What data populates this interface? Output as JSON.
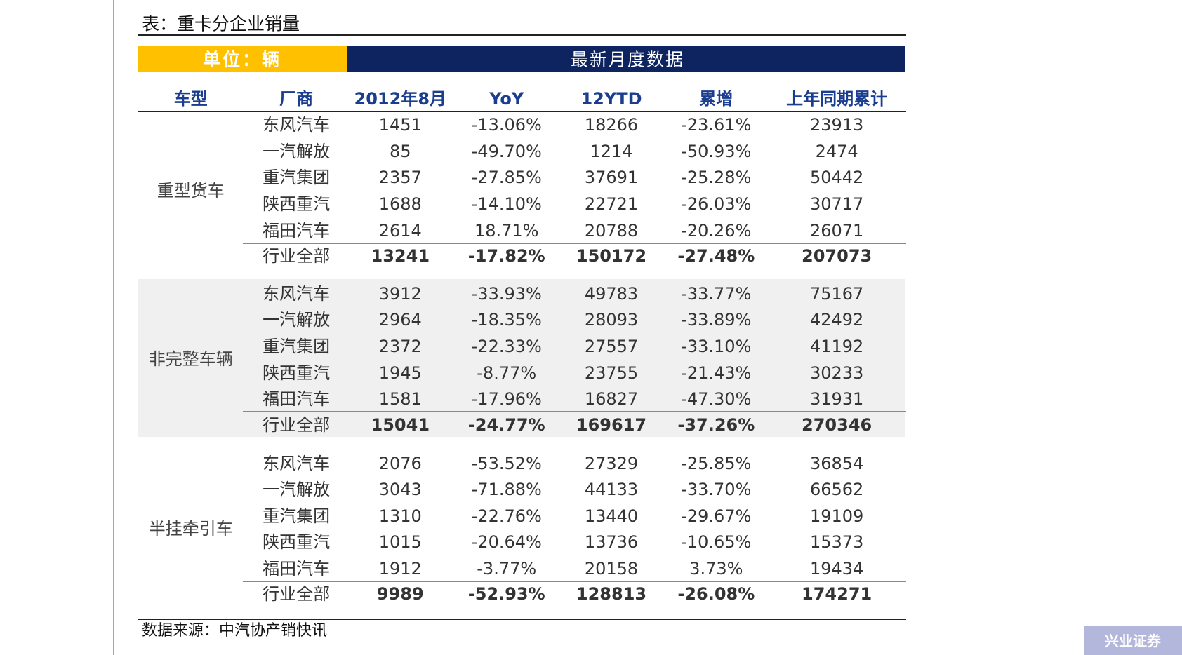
{
  "title": "表：重卡分企业销量",
  "header": {
    "unit": "单位：辆",
    "latest": "最新月度数据"
  },
  "columns": [
    "车型",
    "厂商",
    "2012年8月",
    "YoY",
    "12YTD",
    "累增",
    "上年同期累计"
  ],
  "groups": [
    {
      "type": "重型货车",
      "rows": [
        [
          "东风汽车",
          "1451",
          "-13.06%",
          "18266",
          "-23.61%",
          "23913"
        ],
        [
          "一汽解放",
          "85",
          "-49.70%",
          "1214",
          "-50.93%",
          "2474"
        ],
        [
          "重汽集团",
          "2357",
          "-27.85%",
          "37691",
          "-25.28%",
          "50442"
        ],
        [
          "陕西重汽",
          "1688",
          "-14.10%",
          "22721",
          "-26.03%",
          "30717"
        ],
        [
          "福田汽车",
          "2614",
          "18.71%",
          "20788",
          "-20.26%",
          "26071"
        ]
      ],
      "total": [
        "行业全部",
        "13241",
        "-17.82%",
        "150172",
        "-27.48%",
        "207073"
      ]
    },
    {
      "type": "非完整车辆",
      "rows": [
        [
          "东风汽车",
          "3912",
          "-33.93%",
          "49783",
          "-33.77%",
          "75167"
        ],
        [
          "一汽解放",
          "2964",
          "-18.35%",
          "28093",
          "-33.89%",
          "42492"
        ],
        [
          "重汽集团",
          "2372",
          "-22.33%",
          "27557",
          "-33.10%",
          "41192"
        ],
        [
          "陕西重汽",
          "1945",
          "-8.77%",
          "23755",
          "-21.43%",
          "30233"
        ],
        [
          "福田汽车",
          "1581",
          "-17.96%",
          "16827",
          "-47.30%",
          "31931"
        ]
      ],
      "total": [
        "行业全部",
        "15041",
        "-24.77%",
        "169617",
        "-37.26%",
        "270346"
      ]
    },
    {
      "type": "半挂牵引车",
      "rows": [
        [
          "东风汽车",
          "2076",
          "-53.52%",
          "27329",
          "-25.85%",
          "36854"
        ],
        [
          "一汽解放",
          "3043",
          "-71.88%",
          "44133",
          "-33.70%",
          "66562"
        ],
        [
          "重汽集团",
          "1310",
          "-22.76%",
          "13440",
          "-29.67%",
          "19109"
        ],
        [
          "陕西重汽",
          "1015",
          "-20.64%",
          "13736",
          "-10.65%",
          "15373"
        ],
        [
          "福田汽车",
          "1912",
          "-3.77%",
          "20158",
          "3.73%",
          "19434"
        ]
      ],
      "total": [
        "行业全部",
        "9989",
        "-52.93%",
        "128813",
        "-26.08%",
        "174271"
      ]
    }
  ],
  "source": "数据来源：中汽协产销快讯",
  "watermark": "兴业证券"
}
